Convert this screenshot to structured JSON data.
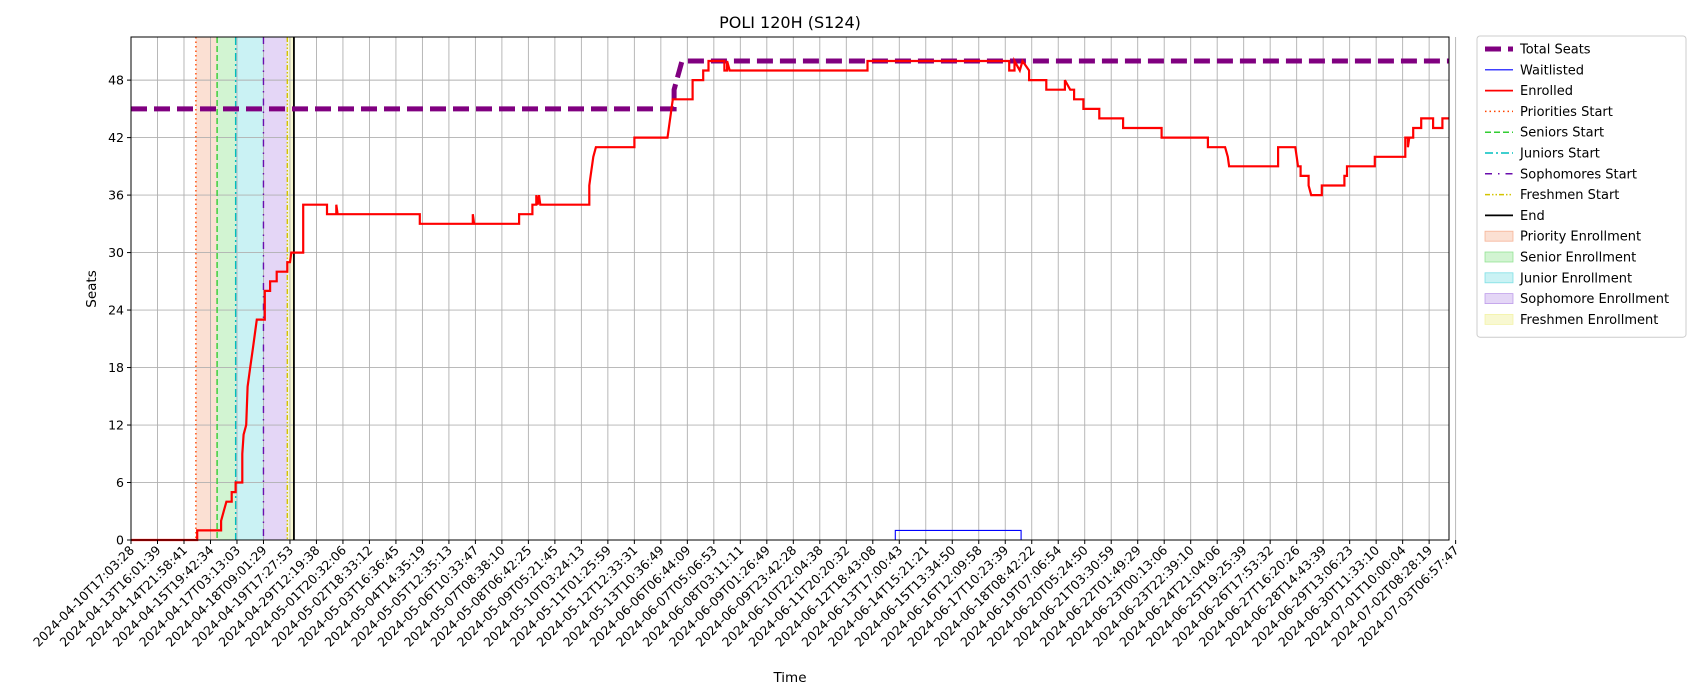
{
  "chart_data": {
    "type": "line",
    "title": "POLI 120H (S124)",
    "xlabel": "Time",
    "ylabel": "Seats",
    "ylim": [
      0,
      52.5
    ],
    "yticks": [
      0,
      6,
      12,
      18,
      24,
      30,
      36,
      42,
      48
    ],
    "grid": true,
    "legend_placement": "outside-right-top",
    "x_categories": [
      "2024-04-10T17:03:28",
      "2024-04-13T16:01:39",
      "2024-04-14T21:58:41",
      "2024-04-15T19:42:34",
      "2024-04-17T03:13:03",
      "2024-04-18T09:01:29",
      "2024-04-19T17:27:53",
      "2024-04-29T12:19:38",
      "2024-05-01T20:32:06",
      "2024-05-02T18:33:12",
      "2024-05-03T16:36:45",
      "2024-05-04T14:35:19",
      "2024-05-05T12:35:13",
      "2024-05-06T10:33:47",
      "2024-05-07T08:38:10",
      "2024-05-08T06:42:25",
      "2024-05-09T05:21:45",
      "2024-05-10T03:24:13",
      "2024-05-11T01:25:59",
      "2024-05-12T12:33:31",
      "2024-05-13T10:36:49",
      "2024-06-06T06:44:09",
      "2024-06-07T05:06:53",
      "2024-06-08T03:11:11",
      "2024-06-09T01:26:49",
      "2024-06-09T23:42:28",
      "2024-06-10T22:04:38",
      "2024-06-11T20:20:32",
      "2024-06-12T18:43:08",
      "2024-06-13T17:00:43",
      "2024-06-14T15:21:21",
      "2024-06-15T13:34:50",
      "2024-06-16T12:09:58",
      "2024-06-17T10:23:39",
      "2024-06-18T08:42:22",
      "2024-06-19T07:06:54",
      "2024-06-20T05:24:50",
      "2024-06-21T03:30:59",
      "2024-06-22T01:49:29",
      "2024-06-23T00:13:06",
      "2024-06-23T22:39:10",
      "2024-06-24T21:04:06",
      "2024-06-25T19:25:39",
      "2024-06-26T17:53:32",
      "2024-06-27T16:20:26",
      "2024-06-28T14:43:39",
      "2024-06-29T13:06:23",
      "2024-06-30T11:33:10",
      "2024-07-01T10:00:04",
      "2024-07-02T08:28:19",
      "2024-07-03T06:57:47"
    ],
    "tick_spacing_index": 2,
    "x_index_max": 99.5,
    "series": [
      {
        "name": "Total Seats",
        "color": "#800080",
        "style": "dashed-thick",
        "points": [
          [
            0,
            45
          ],
          [
            41,
            45
          ],
          [
            41,
            47
          ],
          [
            41.2,
            48
          ],
          [
            41.4,
            49
          ],
          [
            41.6,
            50
          ],
          [
            99.5,
            50
          ]
        ]
      },
      {
        "name": "Waitlisted",
        "color": "#0000ff",
        "style": "solid-thin",
        "points": [
          [
            0,
            0
          ],
          [
            57.7,
            0
          ],
          [
            57.7,
            1
          ],
          [
            67.2,
            1
          ],
          [
            67.2,
            0
          ],
          [
            99.5,
            0
          ]
        ]
      },
      {
        "name": "Enrolled",
        "color": "#ff0000",
        "style": "solid-step",
        "points": [
          [
            0,
            0
          ],
          [
            5.0,
            0
          ],
          [
            5.0,
            1
          ],
          [
            6.8,
            1
          ],
          [
            6.8,
            2
          ],
          [
            7.0,
            3
          ],
          [
            7.2,
            4
          ],
          [
            7.6,
            4
          ],
          [
            7.6,
            5
          ],
          [
            7.9,
            5
          ],
          [
            7.9,
            6
          ],
          [
            8.4,
            6
          ],
          [
            8.4,
            9
          ],
          [
            8.5,
            11
          ],
          [
            8.7,
            12
          ],
          [
            8.8,
            16
          ],
          [
            8.9,
            17
          ],
          [
            9.0,
            18
          ],
          [
            9.2,
            20
          ],
          [
            9.4,
            22
          ],
          [
            9.5,
            23
          ],
          [
            10.1,
            23
          ],
          [
            10.1,
            26
          ],
          [
            10.5,
            26
          ],
          [
            10.5,
            27
          ],
          [
            11.0,
            27
          ],
          [
            11.0,
            28
          ],
          [
            11.8,
            28
          ],
          [
            11.8,
            29
          ],
          [
            12.0,
            29
          ],
          [
            12.1,
            30
          ],
          [
            13.0,
            30
          ],
          [
            13.0,
            35
          ],
          [
            14.8,
            35
          ],
          [
            14.8,
            34
          ],
          [
            15.5,
            34
          ],
          [
            15.5,
            35
          ],
          [
            15.6,
            34
          ],
          [
            21.8,
            34
          ],
          [
            21.8,
            33
          ],
          [
            25.8,
            33
          ],
          [
            25.8,
            34
          ],
          [
            25.9,
            33
          ],
          [
            29.3,
            33
          ],
          [
            29.3,
            34
          ],
          [
            30.3,
            34
          ],
          [
            30.3,
            35
          ],
          [
            30.6,
            35
          ],
          [
            30.6,
            36
          ],
          [
            30.7,
            35
          ],
          [
            30.8,
            36
          ],
          [
            30.9,
            35
          ],
          [
            34.6,
            35
          ],
          [
            34.6,
            37
          ],
          [
            34.7,
            38
          ],
          [
            34.9,
            40
          ],
          [
            35.1,
            41
          ],
          [
            38.0,
            41
          ],
          [
            38.0,
            42
          ],
          [
            40.5,
            42
          ],
          [
            40.9,
            46
          ],
          [
            42.4,
            46
          ],
          [
            42.4,
            48
          ],
          [
            43.2,
            48
          ],
          [
            43.2,
            49
          ],
          [
            43.6,
            49
          ],
          [
            43.6,
            50
          ],
          [
            44.8,
            50
          ],
          [
            44.8,
            49
          ],
          [
            45.0,
            49
          ],
          [
            45.0,
            50
          ],
          [
            45.2,
            49
          ],
          [
            55.6,
            49
          ],
          [
            55.6,
            50
          ],
          [
            66.3,
            50
          ],
          [
            66.3,
            49
          ],
          [
            66.7,
            49
          ],
          [
            66.7,
            50
          ],
          [
            67.1,
            49
          ],
          [
            67.3,
            50
          ],
          [
            67.8,
            49
          ],
          [
            67.8,
            48
          ],
          [
            69.1,
            48
          ],
          [
            69.1,
            47
          ],
          [
            70.5,
            47
          ],
          [
            70.5,
            48
          ],
          [
            70.9,
            47
          ],
          [
            71.2,
            47
          ],
          [
            71.2,
            46
          ],
          [
            71.9,
            46
          ],
          [
            71.9,
            45
          ],
          [
            73.1,
            45
          ],
          [
            73.1,
            44
          ],
          [
            74.9,
            44
          ],
          [
            74.9,
            43
          ],
          [
            77.8,
            43
          ],
          [
            77.8,
            42
          ],
          [
            81.3,
            42
          ],
          [
            81.3,
            41
          ],
          [
            82.6,
            41
          ],
          [
            82.8,
            40
          ],
          [
            82.9,
            39
          ],
          [
            86.6,
            39
          ],
          [
            86.6,
            41
          ],
          [
            87.9,
            41
          ],
          [
            88.0,
            40
          ],
          [
            88.1,
            39
          ],
          [
            88.3,
            39
          ],
          [
            88.3,
            38
          ],
          [
            88.9,
            38
          ],
          [
            88.9,
            37
          ],
          [
            89.1,
            36
          ],
          [
            89.9,
            36
          ],
          [
            89.9,
            37
          ],
          [
            91.6,
            37
          ],
          [
            91.6,
            38
          ],
          [
            91.8,
            38
          ],
          [
            91.8,
            39
          ],
          [
            93.9,
            39
          ],
          [
            93.9,
            40
          ],
          [
            96.2,
            40
          ],
          [
            96.2,
            42
          ],
          [
            96.4,
            42
          ],
          [
            96.4,
            41
          ],
          [
            96.5,
            42
          ],
          [
            96.8,
            42
          ],
          [
            96.8,
            43
          ],
          [
            97.4,
            43
          ],
          [
            97.4,
            44
          ],
          [
            98.3,
            44
          ],
          [
            98.3,
            43
          ],
          [
            99.0,
            43
          ],
          [
            99.0,
            44
          ],
          [
            99.5,
            44
          ]
        ]
      }
    ],
    "vertical_lines": [
      {
        "name": "Priorities Start",
        "x": 4.9,
        "color": "#ff4500",
        "style": "dotted"
      },
      {
        "name": "Seniors Start",
        "x": 6.5,
        "color": "#32cd32",
        "style": "dashed"
      },
      {
        "name": "Juniors Start",
        "x": 7.9,
        "color": "#00bfbf",
        "style": "dashdot"
      },
      {
        "name": "Sophomores Start",
        "x": 10.0,
        "color": "#6a0dad",
        "style": "loosely-dashdot"
      },
      {
        "name": "Freshmen Start",
        "x": 11.8,
        "color": "#d4c400",
        "style": "dashdotdot"
      },
      {
        "name": "End",
        "x": 12.3,
        "color": "#000000",
        "style": "solid"
      }
    ],
    "shaded_regions": [
      {
        "name": "Priority Enrollment",
        "x0": 4.9,
        "x1": 6.5,
        "color": "#f4a582",
        "opacity": 0.35
      },
      {
        "name": "Senior Enrollment",
        "x0": 6.5,
        "x1": 7.9,
        "color": "#7fdf7f",
        "opacity": 0.35
      },
      {
        "name": "Junior Enrollment",
        "x0": 7.9,
        "x1": 10.0,
        "color": "#66d9e0",
        "opacity": 0.35
      },
      {
        "name": "Sophomore Enrollment",
        "x0": 10.0,
        "x1": 11.8,
        "color": "#b28ae6",
        "opacity": 0.35
      },
      {
        "name": "Freshmen Enrollment",
        "x0": 11.8,
        "x1": 12.3,
        "color": "#f0f099",
        "opacity": 0.45
      }
    ],
    "legend": [
      {
        "label": "Total Seats",
        "kind": "line",
        "color": "#800080",
        "style": "dashed-thick"
      },
      {
        "label": "Waitlisted",
        "kind": "line",
        "color": "#0000ff",
        "style": "solid-thin"
      },
      {
        "label": "Enrolled",
        "kind": "line",
        "color": "#ff0000",
        "style": "solid"
      },
      {
        "label": "Priorities Start",
        "kind": "line",
        "color": "#ff4500",
        "style": "dotted"
      },
      {
        "label": "Seniors Start",
        "kind": "line",
        "color": "#32cd32",
        "style": "dashed"
      },
      {
        "label": "Juniors Start",
        "kind": "line",
        "color": "#00bfbf",
        "style": "dashdot"
      },
      {
        "label": "Sophomores Start",
        "kind": "line",
        "color": "#6a0dad",
        "style": "loosely-dashdot"
      },
      {
        "label": "Freshmen Start",
        "kind": "line",
        "color": "#d4c400",
        "style": "dashdotdot"
      },
      {
        "label": "End",
        "kind": "line",
        "color": "#000000",
        "style": "solid"
      },
      {
        "label": "Priority Enrollment",
        "kind": "patch",
        "color": "#f4a582",
        "opacity": 0.35
      },
      {
        "label": "Senior Enrollment",
        "kind": "patch",
        "color": "#7fdf7f",
        "opacity": 0.35
      },
      {
        "label": "Junior Enrollment",
        "kind": "patch",
        "color": "#66d9e0",
        "opacity": 0.35
      },
      {
        "label": "Sophomore Enrollment",
        "kind": "patch",
        "color": "#b28ae6",
        "opacity": 0.35
      },
      {
        "label": "Freshmen Enrollment",
        "kind": "patch",
        "color": "#f0f099",
        "opacity": 0.45
      }
    ]
  }
}
